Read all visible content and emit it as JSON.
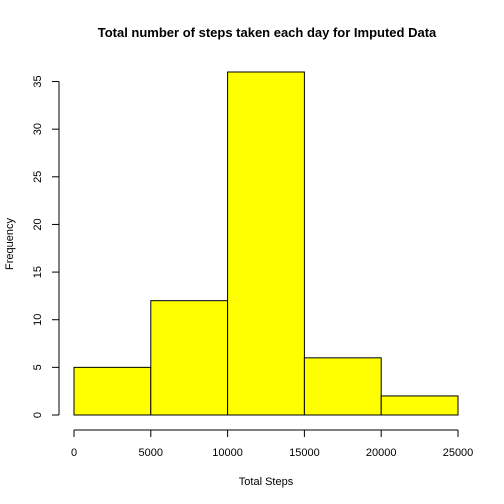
{
  "chart_data": {
    "type": "bar",
    "title": "Total number of steps taken each day for Imputed Data",
    "xlabel": "Total Steps",
    "ylabel": "Frequency",
    "bins": [
      {
        "from": 0,
        "to": 5000,
        "value": 5
      },
      {
        "from": 5000,
        "to": 10000,
        "value": 12
      },
      {
        "from": 10000,
        "to": 15000,
        "value": 36
      },
      {
        "from": 15000,
        "to": 20000,
        "value": 6
      },
      {
        "from": 20000,
        "to": 25000,
        "value": 2
      }
    ],
    "xticks": [
      0,
      5000,
      10000,
      15000,
      20000,
      25000
    ],
    "yticks": [
      0,
      5,
      10,
      15,
      20,
      25,
      30,
      35
    ],
    "xlim": [
      0,
      25000
    ],
    "ylim": [
      0,
      36
    ],
    "bar_color": "#ffff00",
    "edge_color": "#000000",
    "grid": false
  }
}
